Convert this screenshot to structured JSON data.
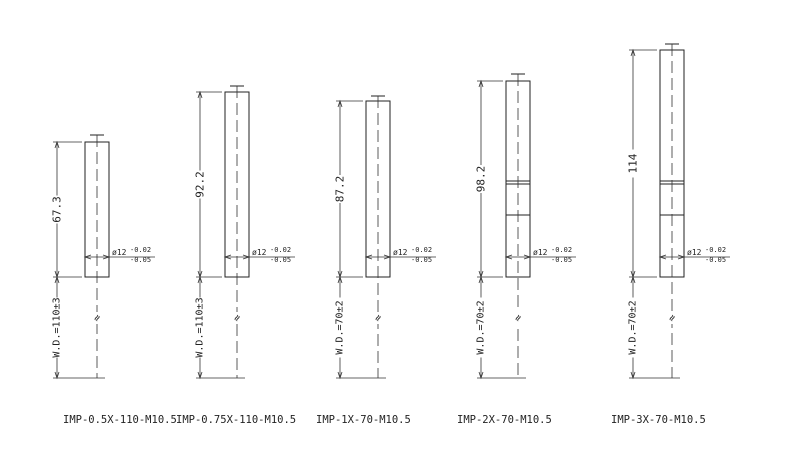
{
  "drawing": {
    "lenses": [
      {
        "model": "IMP-0.5X-110-M10.5",
        "length": "67.3",
        "working_distance": "W.D.=110±3",
        "diameter": "ø12",
        "tol_upper": "-0.02",
        "tol_lower": "-0.05",
        "break_symbol": "≈"
      },
      {
        "model": "IMP-0.75X-110-M10.5",
        "length": "92.2",
        "working_distance": "W.D.=110±3",
        "diameter": "ø12",
        "tol_upper": "-0.02",
        "tol_lower": "-0.05",
        "break_symbol": "≈"
      },
      {
        "model": "IMP-1X-70-M10.5",
        "length": "87.2",
        "working_distance": "W.D.=70±2",
        "diameter": "ø12",
        "tol_upper": "-0.02",
        "tol_lower": "-0.05",
        "break_symbol": "≈"
      },
      {
        "model": "IMP-2X-70-M10.5",
        "length": "98.2",
        "working_distance": "W.D.=70±2",
        "diameter": "ø12",
        "tol_upper": "-0.02",
        "tol_lower": "-0.05",
        "break_symbol": "≈"
      },
      {
        "model": "IMP-3X-70-M10.5",
        "length": "114",
        "working_distance": "W.D.=70±2",
        "diameter": "ø12",
        "tol_upper": "-0.02",
        "tol_lower": "-0.05",
        "break_symbol": "≈"
      }
    ]
  }
}
